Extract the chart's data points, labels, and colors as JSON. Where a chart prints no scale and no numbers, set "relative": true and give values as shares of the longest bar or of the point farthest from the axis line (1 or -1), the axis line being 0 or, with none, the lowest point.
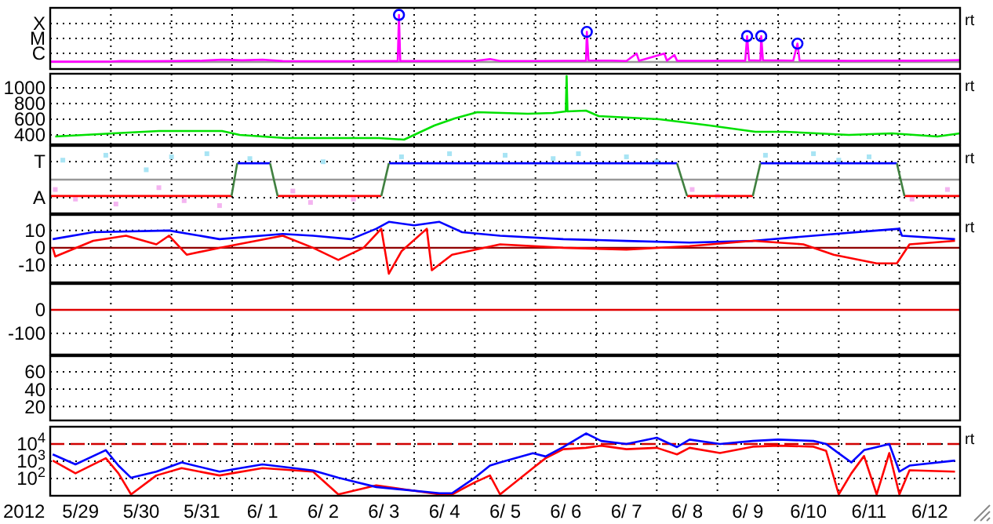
{
  "chart_data": [
    {
      "type": "line",
      "xlim": [
        "2012-05-29T00:00",
        "2012-06-13T00:00"
      ],
      "xticks": [
        {
          "value": "2012-05-30T00:00",
          "label": null
        },
        {
          "value": "2012-05-31T00:00",
          "label": null
        },
        {
          "value": "2012-06-01T00:00",
          "label": null
        },
        {
          "value": "2012-06-02T00:00",
          "label": null
        },
        {
          "value": "2012-06-03T00:00",
          "label": null
        },
        {
          "value": "2012-06-04T00:00",
          "label": null
        },
        {
          "value": "2012-06-05T00:00",
          "label": null
        },
        {
          "value": "2012-06-06T00:00",
          "label": null
        },
        {
          "value": "2012-06-07T00:00",
          "label": null
        },
        {
          "value": "2012-06-08T00:00",
          "label": null
        },
        {
          "value": "2012-06-09T00:00",
          "label": null
        },
        {
          "value": "2012-06-10T00:00",
          "label": null
        },
        {
          "value": "2012-06-11T00:00",
          "label": null
        },
        {
          "value": "2012-06-12T00:00",
          "label": null
        }
      ],
      "relative": true,
      "grid": true,
      "tick_labels": "y",
      "annotations": [
        "C",
        "M",
        "X",
        "rt"
      ],
      "series": [
        {
          "type": "line",
          "color": "#ff00ff",
          "x": [
            "2012-05-29T00:00",
            "2012-05-29T12:00",
            "2012-05-30T00:00",
            "2012-05-30T04:00",
            "2012-05-30T12:00",
            "2012-05-31T00:00",
            "2012-05-31T12:00",
            "2012-05-31T20:00",
            "2012-06-01T04:00",
            "2012-06-01T12:00",
            "2012-06-01T20:00",
            "2012-06-02T12:00",
            "2012-06-03T00:00",
            "2012-06-03T12:00",
            "2012-06-03T17:30",
            "2012-06-03T18:00",
            "2012-06-03T18:30",
            "2012-06-04T12:00",
            "2012-06-05T00:00",
            "2012-06-05T06:00",
            "2012-06-05T10:00",
            "2012-06-06T00:00",
            "2012-06-06T12:00",
            "2012-06-06T20:00",
            "2012-06-06T20:20",
            "2012-06-06T21:00",
            "2012-06-07T06:00",
            "2012-06-07T12:00",
            "2012-06-07T16:00",
            "2012-06-07T17:00",
            "2012-06-08T03:00",
            "2012-06-08T04:00",
            "2012-06-08T07:00",
            "2012-06-08T08:00",
            "2012-06-08T20:00",
            "2012-06-09T06:00",
            "2012-06-09T11:00",
            "2012-06-09T11:45",
            "2012-06-09T12:30",
            "2012-06-09T17:00",
            "2012-06-09T17:20",
            "2012-06-09T18:00",
            "2012-06-10T06:00",
            "2012-06-10T07:40",
            "2012-06-10T08:30",
            "2012-06-10T18:00",
            "2012-06-11T06:00",
            "2012-06-11T18:00",
            "2012-06-12T06:00",
            "2012-06-12T18:00",
            "2012-06-13T00:00"
          ],
          "values": [
            0.006,
            0.0067,
            0.0076,
            0.018,
            0.015,
            0.018,
            0.027,
            0.048,
            0.036,
            0.048,
            0.018,
            0.015,
            0.015,
            0.018,
            0.018,
            1,
            0.018,
            0.018,
            0.021,
            0.061,
            0.021,
            0.021,
            0.024,
            0.024,
            0.64,
            0.03,
            0.03,
            0.021,
            0.18,
            0.024,
            0.18,
            0.027,
            0.15,
            0.027,
            0.024,
            0.03,
            0.027,
            0.55,
            0.036,
            0.03,
            0.55,
            0.036,
            0.03,
            0.39,
            0.03,
            0.027,
            0.024,
            0.03,
            0.027,
            0.033,
            0.039
          ]
        },
        {
          "type": "scatter",
          "marker": "circle",
          "color": "#0000ff",
          "x": [
            "2012-06-03T18:00",
            "2012-06-06T20:20",
            "2012-06-09T11:45",
            "2012-06-09T17:20",
            "2012-06-10T07:40"
          ],
          "values": [
            1,
            0.64,
            0.55,
            0.55,
            0.39
          ]
        }
      ]
    },
    {
      "type": "line",
      "xlim": [
        "2012-05-29T00:00",
        "2012-06-13T00:00"
      ],
      "xticks": [
        {
          "value": "2012-05-30T00:00",
          "label": null
        },
        {
          "value": "2012-05-31T00:00",
          "label": null
        },
        {
          "value": "2012-06-01T00:00",
          "label": null
        },
        {
          "value": "2012-06-02T00:00",
          "label": null
        },
        {
          "value": "2012-06-03T00:00",
          "label": null
        },
        {
          "value": "2012-06-04T00:00",
          "label": null
        },
        {
          "value": "2012-06-05T00:00",
          "label": null
        },
        {
          "value": "2012-06-06T00:00",
          "label": null
        },
        {
          "value": "2012-06-07T00:00",
          "label": null
        },
        {
          "value": "2012-06-08T00:00",
          "label": null
        },
        {
          "value": "2012-06-09T00:00",
          "label": null
        },
        {
          "value": "2012-06-10T00:00",
          "label": null
        },
        {
          "value": "2012-06-11T00:00",
          "label": null
        },
        {
          "value": "2012-06-12T00:00",
          "label": null
        }
      ],
      "ylim": [
        280,
        1180
      ],
      "yticks": [
        400,
        600,
        800,
        1000
      ],
      "grid": true,
      "tick_labels": "y",
      "annotations": [
        "rt"
      ],
      "series": [
        {
          "type": "line",
          "color": "#00e000",
          "x": [
            "2012-05-29T02:00",
            "2012-05-30T01:00",
            "2012-05-30T19:00",
            "2012-05-31T20:00",
            "2012-06-01T03:00",
            "2012-06-01T21:00",
            "2012-06-03T10:00",
            "2012-06-03T20:00",
            "2012-06-04T08:00",
            "2012-06-04T16:00",
            "2012-06-05T01:00",
            "2012-06-05T21:00",
            "2012-06-06T07:00",
            "2012-06-06T12:00",
            "2012-06-06T12:20",
            "2012-06-06T12:40",
            "2012-06-06T20:00",
            "2012-06-07T01:00",
            "2012-06-08T01:00",
            "2012-06-08T21:00",
            "2012-06-09T15:00",
            "2012-06-10T03:00",
            "2012-06-11T04:00",
            "2012-06-11T21:00",
            "2012-06-12T15:00",
            "2012-06-13T00:00"
          ],
          "values": [
            380,
            420,
            450,
            450,
            400,
            360,
            360,
            340,
            520,
            610,
            690,
            670,
            680,
            700,
            1150,
            700,
            710,
            640,
            600,
            520,
            440,
            440,
            400,
            420,
            380,
            420
          ]
        }
      ]
    },
    {
      "type": "line",
      "xlim": [
        "2012-05-29T00:00",
        "2012-06-13T00:00"
      ],
      "xticks": [
        {
          "value": "2012-05-30T00:00",
          "label": null
        },
        {
          "value": "2012-05-31T00:00",
          "label": null
        },
        {
          "value": "2012-06-01T00:00",
          "label": null
        },
        {
          "value": "2012-06-02T00:00",
          "label": null
        },
        {
          "value": "2012-06-03T00:00",
          "label": null
        },
        {
          "value": "2012-06-04T00:00",
          "label": null
        },
        {
          "value": "2012-06-05T00:00",
          "label": null
        },
        {
          "value": "2012-06-06T00:00",
          "label": null
        },
        {
          "value": "2012-06-07T00:00",
          "label": null
        },
        {
          "value": "2012-06-08T00:00",
          "label": null
        },
        {
          "value": "2012-06-09T00:00",
          "label": null
        },
        {
          "value": "2012-06-10T00:00",
          "label": null
        },
        {
          "value": "2012-06-11T00:00",
          "label": null
        },
        {
          "value": "2012-06-12T00:00",
          "label": null
        }
      ],
      "relative": true,
      "grid": true,
      "tick_labels": "y",
      "annotations": [
        "A",
        "T",
        "rt"
      ],
      "series": [
        {
          "type": "scatter",
          "marker": "square",
          "color": "#a8e4f4",
          "x": [
            "2012-05-29T05:00",
            "2012-05-29T22:00",
            "2012-05-30T14:00",
            "2012-05-31T00:00",
            "2012-05-31T14:00",
            "2012-06-01T07:00",
            "2012-06-02T12:00",
            "2012-06-03T19:00",
            "2012-06-04T14:00",
            "2012-06-05T12:00",
            "2012-06-06T07:00",
            "2012-06-06T17:00",
            "2012-06-07T12:00",
            "2012-06-08T00:00",
            "2012-06-09T19:00",
            "2012-06-10T14:00",
            "2012-06-11T00:00",
            "2012-06-11T12:00"
          ],
          "values": [
            0.75,
            0.94,
            0.38,
            0.88,
            1,
            0.81,
            0.69,
            0.88,
            1,
            0.94,
            0.81,
            1,
            0.88,
            0.69,
            0.94,
            1,
            0.75,
            0.88
          ]
        },
        {
          "type": "scatter",
          "marker": "square",
          "color": "#f4b4f0",
          "x": [
            "2012-05-29T02:00",
            "2012-05-29T10:00",
            "2012-05-30T02:00",
            "2012-05-30T19:00",
            "2012-05-31T05:00",
            "2012-05-31T19:00",
            "2012-06-02T00:00",
            "2012-06-02T07:00",
            "2012-06-03T00:00",
            "2012-06-08T14:00",
            "2012-06-09T00:00",
            "2012-06-12T05:00",
            "2012-06-12T19:00"
          ],
          "values": [
            -0.38,
            -0.75,
            -0.94,
            -0.31,
            -0.81,
            -1,
            -0.44,
            -0.88,
            -0.75,
            -0.38,
            -0.63,
            -0.75,
            -0.38
          ]
        },
        {
          "type": "line",
          "color": "#ff0000",
          "x": [
            "2012-05-29T00:00",
            "2012-05-31T23:45",
            "2012-06-01T08:00",
            "2012-06-01T18:00",
            "2012-06-03T11:00",
            "2012-06-06T00:00",
            "2012-06-08T12:00",
            "2012-06-09T14:00",
            "2012-06-11T00:00",
            "2012-06-12T02:00",
            "2012-06-13T00:00"
          ],
          "values": [
            -0.63,
            -0.63,
            null,
            -0.63,
            -0.63,
            null,
            -0.63,
            -0.63,
            null,
            -0.63,
            -0.63
          ]
        },
        {
          "type": "line",
          "color": "#0000ff",
          "x": [
            "2012-06-01T02:00",
            "2012-06-01T15:00",
            "2012-06-02T00:00",
            "2012-06-03T14:00",
            "2012-06-08T08:00",
            "2012-06-09T00:00",
            "2012-06-09T17:00",
            "2012-06-11T23:00"
          ],
          "values": [
            0.63,
            0.63,
            null,
            0.63,
            0.63,
            null,
            0.63,
            0.63
          ]
        },
        {
          "type": "line",
          "color": "#408040",
          "x": [
            "2012-05-31T23:45",
            "2012-06-01T02:00",
            "2012-06-01T08:00",
            "2012-06-01T15:00",
            "2012-06-01T18:00",
            "2012-06-02T12:00",
            "2012-06-03T11:00",
            "2012-06-03T14:00",
            "2012-06-06T00:00",
            "2012-06-08T08:00",
            "2012-06-08T12:00",
            "2012-06-09T00:00",
            "2012-06-09T14:00",
            "2012-06-09T17:00",
            "2012-06-11T00:00",
            "2012-06-11T23:00",
            "2012-06-12T02:00"
          ],
          "values": [
            -0.63,
            0.63,
            null,
            0.63,
            -0.63,
            null,
            -0.63,
            0.63,
            null,
            0.63,
            -0.63,
            null,
            -0.63,
            0.63,
            null,
            0.63,
            -0.63
          ]
        }
      ]
    },
    {
      "type": "line",
      "xlim": [
        "2012-05-29T00:00",
        "2012-06-13T00:00"
      ],
      "xticks": [
        {
          "value": "2012-05-30T00:00",
          "label": null
        },
        {
          "value": "2012-05-31T00:00",
          "label": null
        },
        {
          "value": "2012-06-01T00:00",
          "label": null
        },
        {
          "value": "2012-06-02T00:00",
          "label": null
        },
        {
          "value": "2012-06-03T00:00",
          "label": null
        },
        {
          "value": "2012-06-04T00:00",
          "label": null
        },
        {
          "value": "2012-06-05T00:00",
          "label": null
        },
        {
          "value": "2012-06-06T00:00",
          "label": null
        },
        {
          "value": "2012-06-07T00:00",
          "label": null
        },
        {
          "value": "2012-06-08T00:00",
          "label": null
        },
        {
          "value": "2012-06-09T00:00",
          "label": null
        },
        {
          "value": "2012-06-10T00:00",
          "label": null
        },
        {
          "value": "2012-06-11T00:00",
          "label": null
        },
        {
          "value": "2012-06-12T00:00",
          "label": null
        }
      ],
      "ylim": [
        -20,
        19
      ],
      "yticks": [
        -10,
        0,
        10
      ],
      "grid": true,
      "tick_labels": "y",
      "annotations": [
        "rt"
      ],
      "ref_lines": [
        {
          "axis": "y",
          "value": 0,
          "color": "#900000"
        }
      ],
      "series": [
        {
          "type": "line",
          "color": "#0000ff",
          "x": [
            "2012-05-29T01:00",
            "2012-05-29T17:00",
            "2012-05-30T23:00",
            "2012-05-31T19:00",
            "2012-06-01T20:00",
            "2012-06-02T08:00",
            "2012-06-02T23:00",
            "2012-06-03T09:00",
            "2012-06-03T14:00",
            "2012-06-04T00:00",
            "2012-06-04T10:00",
            "2012-06-04T19:00",
            "2012-06-05T10:00",
            "2012-06-06T11:00",
            "2012-06-07T12:00",
            "2012-06-08T13:00",
            "2012-06-09T14:00",
            "2012-06-10T14:00",
            "2012-06-11T15:00",
            "2012-06-12T00:00",
            "2012-06-12T01:00",
            "2012-06-12T22:00"
          ],
          "values": [
            5,
            9,
            10,
            5,
            8,
            7,
            5,
            11,
            15,
            13,
            15,
            9,
            7,
            5,
            4,
            3,
            4,
            7,
            10,
            11,
            7,
            5
          ]
        },
        {
          "type": "line",
          "color": "#ff0000",
          "x": [
            "2012-05-29T01:00",
            "2012-05-29T02:00",
            "2012-05-29T17:00",
            "2012-05-30T06:00",
            "2012-05-30T18:00",
            "2012-05-30T23:00",
            "2012-05-31T06:00",
            "2012-05-31T19:00",
            "2012-06-01T20:00",
            "2012-06-02T08:00",
            "2012-06-02T18:00",
            "2012-06-03T04:00",
            "2012-06-03T11:00",
            "2012-06-03T14:00",
            "2012-06-03T19:00",
            "2012-06-04T05:00",
            "2012-06-04T07:00",
            "2012-06-04T15:00",
            "2012-06-05T10:00",
            "2012-06-06T11:00",
            "2012-06-07T12:00",
            "2012-06-08T13:00",
            "2012-06-09T14:00",
            "2012-06-10T10:00",
            "2012-06-10T22:00",
            "2012-06-11T15:00",
            "2012-06-11T23:00",
            "2012-06-12T04:00",
            "2012-06-12T22:00"
          ],
          "values": [
            0,
            -5,
            4,
            7,
            2,
            7,
            -4,
            0,
            7,
            0,
            -7,
            0,
            11,
            -15,
            -2,
            11,
            -13,
            -4,
            2,
            0,
            -1,
            1,
            4,
            2,
            -4,
            -9,
            -9,
            2,
            4
          ]
        }
      ]
    },
    {
      "type": "line",
      "xlim": [
        "2012-05-29T00:00",
        "2012-06-13T00:00"
      ],
      "xticks": [
        {
          "value": "2012-05-30T00:00",
          "label": null
        },
        {
          "value": "2012-05-31T00:00",
          "label": null
        },
        {
          "value": "2012-06-01T00:00",
          "label": null
        },
        {
          "value": "2012-06-02T00:00",
          "label": null
        },
        {
          "value": "2012-06-03T00:00",
          "label": null
        },
        {
          "value": "2012-06-04T00:00",
          "label": null
        },
        {
          "value": "2012-06-05T00:00",
          "label": null
        },
        {
          "value": "2012-06-06T00:00",
          "label": null
        },
        {
          "value": "2012-06-07T00:00",
          "label": null
        },
        {
          "value": "2012-06-08T00:00",
          "label": null
        },
        {
          "value": "2012-06-09T00:00",
          "label": null
        },
        {
          "value": "2012-06-10T00:00",
          "label": null
        },
        {
          "value": "2012-06-11T00:00",
          "label": null
        },
        {
          "value": "2012-06-12T00:00",
          "label": null
        }
      ],
      "ylim": [
        -190,
        110
      ],
      "yticks": [
        -100,
        0
      ],
      "grid": true,
      "tick_labels": "y",
      "series": [
        {
          "type": "line",
          "color": "#e00000",
          "x": [
            "2012-05-29T00:00",
            "2012-06-13T00:00"
          ],
          "values": [
            0,
            0
          ]
        }
      ]
    },
    {
      "type": "line",
      "xlim": [
        "2012-05-29T00:00",
        "2012-06-13T00:00"
      ],
      "xticks": [
        {
          "value": "2012-05-30T00:00",
          "label": null
        },
        {
          "value": "2012-05-31T00:00",
          "label": null
        },
        {
          "value": "2012-06-01T00:00",
          "label": null
        },
        {
          "value": "2012-06-02T00:00",
          "label": null
        },
        {
          "value": "2012-06-03T00:00",
          "label": null
        },
        {
          "value": "2012-06-04T00:00",
          "label": null
        },
        {
          "value": "2012-06-05T00:00",
          "label": null
        },
        {
          "value": "2012-06-06T00:00",
          "label": null
        },
        {
          "value": "2012-06-07T00:00",
          "label": null
        },
        {
          "value": "2012-06-08T00:00",
          "label": null
        },
        {
          "value": "2012-06-09T00:00",
          "label": null
        },
        {
          "value": "2012-06-10T00:00",
          "label": null
        },
        {
          "value": "2012-06-11T00:00",
          "label": null
        },
        {
          "value": "2012-06-12T00:00",
          "label": null
        }
      ],
      "ylim": [
        4,
        78
      ],
      "yticks": [
        20,
        40,
        60
      ],
      "grid": true,
      "tick_labels": "y"
    },
    {
      "type": "line",
      "xlabel": "2012",
      "xlim": [
        "2012-05-29T00:00",
        "2012-06-13T00:00"
      ],
      "xticks": [
        {
          "value": "2012-05-29T12:00",
          "label": "5/29"
        },
        {
          "value": "2012-05-30T00:00",
          "label": null
        },
        {
          "value": "2012-05-30T12:00",
          "label": "5/30"
        },
        {
          "value": "2012-05-31T00:00",
          "label": null
        },
        {
          "value": "2012-05-31T12:00",
          "label": "5/31"
        },
        {
          "value": "2012-06-01T00:00",
          "label": null
        },
        {
          "value": "2012-06-01T12:00",
          "label": "6/ 1"
        },
        {
          "value": "2012-06-02T00:00",
          "label": null
        },
        {
          "value": "2012-06-02T12:00",
          "label": "6/ 2"
        },
        {
          "value": "2012-06-03T00:00",
          "label": null
        },
        {
          "value": "2012-06-03T12:00",
          "label": "6/ 3"
        },
        {
          "value": "2012-06-04T00:00",
          "label": null
        },
        {
          "value": "2012-06-04T12:00",
          "label": "6/ 4"
        },
        {
          "value": "2012-06-05T00:00",
          "label": null
        },
        {
          "value": "2012-06-05T12:00",
          "label": "6/ 5"
        },
        {
          "value": "2012-06-06T00:00",
          "label": null
        },
        {
          "value": "2012-06-06T12:00",
          "label": "6/ 6"
        },
        {
          "value": "2012-06-07T00:00",
          "label": null
        },
        {
          "value": "2012-06-07T12:00",
          "label": "6/ 7"
        },
        {
          "value": "2012-06-08T00:00",
          "label": null
        },
        {
          "value": "2012-06-08T12:00",
          "label": "6/ 8"
        },
        {
          "value": "2012-06-09T00:00",
          "label": null
        },
        {
          "value": "2012-06-09T12:00",
          "label": "6/ 9"
        },
        {
          "value": "2012-06-10T00:00",
          "label": null
        },
        {
          "value": "2012-06-10T12:00",
          "label": "6/10"
        },
        {
          "value": "2012-06-11T00:00",
          "label": null
        },
        {
          "value": "2012-06-11T12:00",
          "label": "6/11"
        },
        {
          "value": "2012-06-12T00:00",
          "label": null
        },
        {
          "value": "2012-06-12T12:00",
          "label": "6/12"
        }
      ],
      "log": true,
      "ylim": [
        10,
        100000
      ],
      "yticks": [
        {
          "value": 100,
          "label": "10$^{2}$"
        },
        {
          "value": 1000,
          "label": "10$^{3}$"
        },
        {
          "value": 10000,
          "label": "10$^{4}$"
        }
      ],
      "grid": true,
      "annotations": [
        "rt"
      ],
      "ref_lines": [
        {
          "axis": "y",
          "value": 10000,
          "color": "#d00000",
          "line_style": "dashed"
        }
      ],
      "x": [
        "2012-05-29T01:00",
        "2012-05-29T10:00",
        "2012-05-29T22:00",
        "2012-05-30T03:00",
        "2012-05-30T08:00",
        "2012-05-30T18:00",
        "2012-05-31T04:00",
        "2012-05-31T19:00",
        "2012-06-01T12:00",
        "2012-06-02T08:00",
        "2012-06-02T18:00",
        "2012-06-03T09:00",
        "2012-06-04T10:00",
        "2012-06-04T15:00",
        "2012-06-05T00:00",
        "2012-06-05T06:00",
        "2012-06-05T10:00",
        "2012-06-05T23:00",
        "2012-06-06T04:00",
        "2012-06-06T11:00",
        "2012-06-06T20:00",
        "2012-06-07T02:00",
        "2012-06-07T12:00",
        "2012-06-08T00:00",
        "2012-06-08T08:00",
        "2012-06-08T13:00",
        "2012-06-09T01:00",
        "2012-06-09T14:00",
        "2012-06-10T00:00",
        "2012-06-10T14:00",
        "2012-06-10T19:00",
        "2012-06-11T00:00",
        "2012-06-11T05:00",
        "2012-06-11T10:00",
        "2012-06-11T15:00",
        "2012-06-11T20:00",
        "2012-06-12T00:00",
        "2012-06-12T04:00",
        "2012-06-12T22:00"
      ],
      "series": [
        {
          "type": "line",
          "color": "#ff0000",
          "values": [
            1100,
            200,
            1500,
            200,
            12,
            150,
            400,
            150,
            400,
            250,
            12,
            40,
            12,
            12,
            60,
            150,
            12,
            400,
            1500,
            5000,
            6000,
            8000,
            5000,
            6000,
            2500,
            6000,
            3000,
            7000,
            8000,
            7000,
            4000,
            12,
            200,
            2000,
            12,
            3000,
            12,
            300,
            250
          ]
        },
        {
          "type": "line",
          "color": "#0000ff",
          "values": [
            2500,
            660,
            4400,
            560,
            110,
            250,
            850,
            250,
            660,
            290,
            110,
            32,
            14,
            14,
            110,
            560,
            850,
            2900,
            1900,
            6600,
            41000,
            15000,
            10000,
            23000,
            6600,
            18000,
            10000,
            15000,
            18000,
            15000,
            10000,
            2900,
            850,
            4400,
            6600,
            10000,
            250,
            560,
            1100
          ]
        }
      ]
    }
  ]
}
